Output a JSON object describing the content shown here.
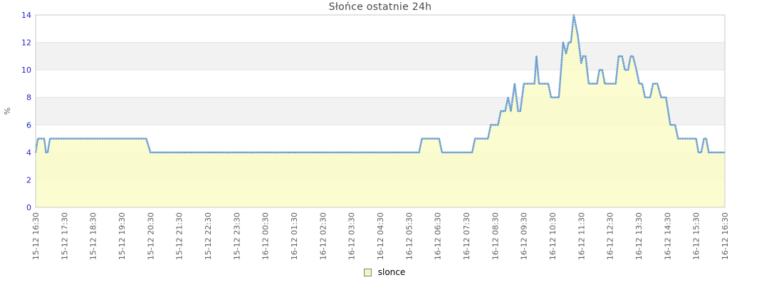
{
  "title": "Słońce ostatnie 24h",
  "legend": {
    "label": "slonce"
  },
  "colors": {
    "title_text": "#4a4a4a",
    "y_tick_text": "#2222cc",
    "x_tick_text": "#606060",
    "axis_title_text": "#606060",
    "band_gray": "#f2f2f2",
    "gridline": "#e4e4e4",
    "frame": "#c9c9c9",
    "line": "#8ab5de",
    "line_dots": "#6496c8",
    "area_fill": "#fbfbc6",
    "legend_swatch_fill": "#f5f5c0",
    "legend_swatch_border": "#808080"
  },
  "chart_data": {
    "type": "area",
    "title": "Słońce ostatnie 24h",
    "xlabel": "",
    "ylabel": "%",
    "ylim": [
      0,
      14
    ],
    "y_ticks": [
      0,
      2,
      4,
      6,
      8,
      10,
      12,
      14
    ],
    "grid": "horizontal-bands-alternating",
    "gray_band_value_ranges": [
      [
        2,
        4
      ],
      [
        6,
        8
      ],
      [
        10,
        12
      ]
    ],
    "legend_position": "bottom-center",
    "x_span_hours": 24,
    "x_tick_interval_hours": 1,
    "x_tick_labels": [
      "15-12 16:30",
      "15-12 17:30",
      "15-12 18:30",
      "15-12 19:30",
      "15-12 20:30",
      "15-12 21:30",
      "15-12 22:30",
      "15-12 23:30",
      "16-12 00:30",
      "16-12 01:30",
      "16-12 02:30",
      "16-12 03:30",
      "16-12 04:30",
      "16-12 05:30",
      "16-12 06:30",
      "16-12 07:30",
      "16-12 08:30",
      "16-12 09:30",
      "16-12 10:30",
      "16-12 11:30",
      "16-12 12:30",
      "16-12 13:30",
      "16-12 14:30",
      "16-12 15:30",
      "16-12 16:30"
    ],
    "series": [
      {
        "name": "slonce",
        "unit": "%",
        "points_format": "[hours_after_15-12_16:30, percent]",
        "points": [
          [
            0,
            4
          ],
          [
            0.08,
            5
          ],
          [
            0.3,
            5
          ],
          [
            0.36,
            4
          ],
          [
            0.42,
            4
          ],
          [
            0.5,
            5
          ],
          [
            3.85,
            5
          ],
          [
            4.0,
            4
          ],
          [
            13.35,
            4
          ],
          [
            13.45,
            5
          ],
          [
            14.05,
            5
          ],
          [
            14.15,
            4
          ],
          [
            15.2,
            4
          ],
          [
            15.3,
            5
          ],
          [
            15.75,
            5
          ],
          [
            15.85,
            6
          ],
          [
            16.1,
            6
          ],
          [
            16.2,
            7
          ],
          [
            16.35,
            7
          ],
          [
            16.45,
            8
          ],
          [
            16.55,
            7
          ],
          [
            16.68,
            9
          ],
          [
            16.8,
            7
          ],
          [
            16.88,
            7
          ],
          [
            17.0,
            9
          ],
          [
            17.37,
            9
          ],
          [
            17.44,
            11
          ],
          [
            17.53,
            9
          ],
          [
            17.85,
            9
          ],
          [
            17.95,
            8
          ],
          [
            18.22,
            8
          ],
          [
            18.37,
            12
          ],
          [
            18.47,
            11.2
          ],
          [
            18.56,
            12
          ],
          [
            18.64,
            12
          ],
          [
            18.74,
            14
          ],
          [
            18.88,
            12.5
          ],
          [
            19.0,
            10.5
          ],
          [
            19.06,
            11
          ],
          [
            19.15,
            11
          ],
          [
            19.26,
            9
          ],
          [
            19.55,
            9
          ],
          [
            19.63,
            10
          ],
          [
            19.73,
            10
          ],
          [
            19.82,
            9
          ],
          [
            20.2,
            9
          ],
          [
            20.3,
            11
          ],
          [
            20.42,
            11
          ],
          [
            20.52,
            10
          ],
          [
            20.63,
            10
          ],
          [
            20.72,
            11
          ],
          [
            20.8,
            11
          ],
          [
            20.92,
            10
          ],
          [
            21.02,
            9
          ],
          [
            21.12,
            9
          ],
          [
            21.22,
            8
          ],
          [
            21.4,
            8
          ],
          [
            21.5,
            9
          ],
          [
            21.65,
            9
          ],
          [
            21.78,
            8
          ],
          [
            21.95,
            8
          ],
          [
            22.1,
            6
          ],
          [
            22.27,
            6
          ],
          [
            22.37,
            5
          ],
          [
            23.0,
            5
          ],
          [
            23.08,
            4
          ],
          [
            23.18,
            4
          ],
          [
            23.27,
            5
          ],
          [
            23.35,
            5
          ],
          [
            23.44,
            4
          ],
          [
            24,
            4
          ]
        ]
      }
    ]
  }
}
